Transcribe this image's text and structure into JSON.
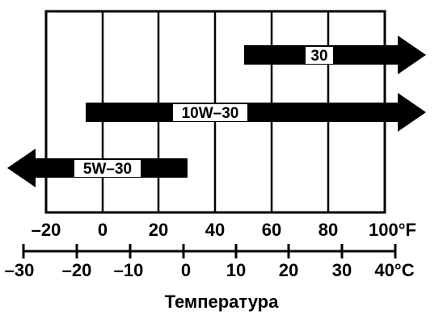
{
  "title": "Температура",
  "fahrenheit_ticks": [
    "–20",
    "0",
    "20",
    "40",
    "60",
    "80",
    "100°F"
  ],
  "celsius_ticks": [
    "–30",
    "–20",
    "–10",
    "0",
    "10",
    "20",
    "30",
    "40°C"
  ],
  "arrows": [
    {
      "label": "30",
      "from_f": 50,
      "to_f": 100,
      "open_end": "high"
    },
    {
      "label": "10W–30",
      "from_f": -5,
      "to_f": 100,
      "open_end": "high"
    },
    {
      "label": "5W–30",
      "from_f": -20,
      "to_f": 30,
      "open_end": "low"
    }
  ]
}
